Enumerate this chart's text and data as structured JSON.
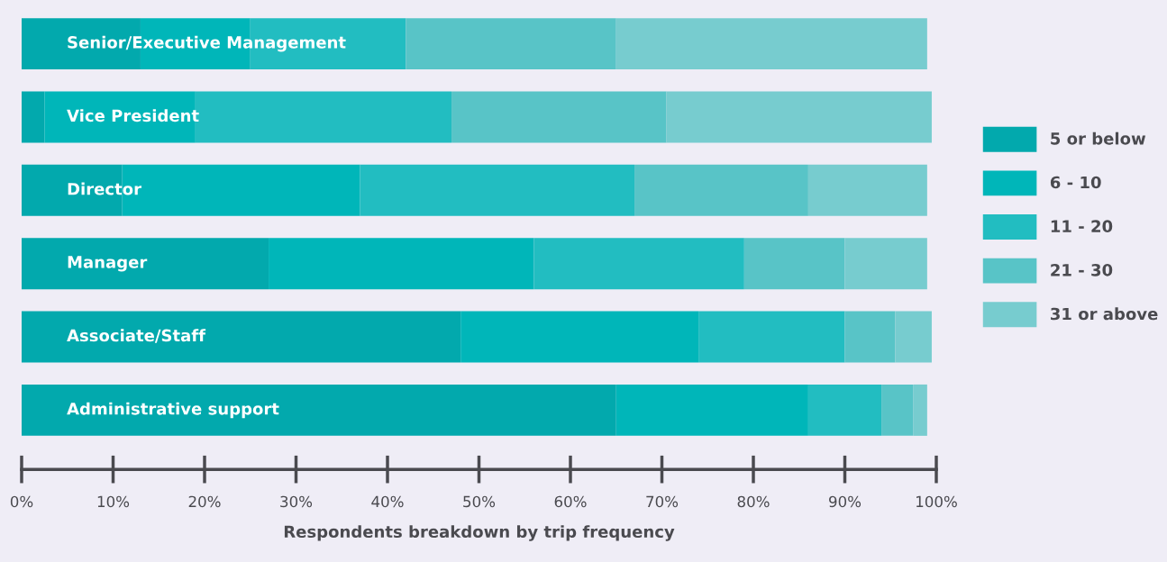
{
  "chart_data": {
    "type": "bar",
    "orientation": "horizontal",
    "stacked": true,
    "xlabel": "Respondents breakdown by trip frequency",
    "categories": [
      "Senior/Executive Management",
      "Vice President",
      "Director",
      "Manager",
      "Associate/Staff",
      "Administrative support"
    ],
    "series": [
      {
        "name": "5 or below",
        "color": "#02a9ad",
        "values": [
          13,
          2.5,
          11,
          27,
          48,
          65
        ]
      },
      {
        "name": "6 - 10",
        "color": "#00b6b9",
        "values": [
          12,
          16.5,
          26,
          29,
          26,
          21
        ]
      },
      {
        "name": "11 - 20",
        "color": "#22bdc1",
        "values": [
          17,
          28,
          30,
          23,
          16,
          8
        ]
      },
      {
        "name": "21 - 30",
        "color": "#58c4c7",
        "values": [
          23,
          23.5,
          19,
          11,
          5.5,
          3.5
        ]
      },
      {
        "name": "31 or above",
        "color": "#77cccf",
        "values": [
          34,
          29,
          13,
          9,
          4,
          1.5
        ]
      }
    ],
    "xlim": [
      0,
      100
    ],
    "xticks": [
      {
        "value": 0,
        "label": "0%"
      },
      {
        "value": 10,
        "label": "10%"
      },
      {
        "value": 20,
        "label": "20%"
      },
      {
        "value": 30,
        "label": "30%"
      },
      {
        "value": 40,
        "label": "40%"
      },
      {
        "value": 50,
        "label": "50%"
      },
      {
        "value": 60,
        "label": "60%"
      },
      {
        "value": 70,
        "label": "70%"
      },
      {
        "value": 80,
        "label": "80%"
      },
      {
        "value": 90,
        "label": "90%"
      },
      {
        "value": 100,
        "label": "100%"
      }
    ],
    "tick_labels": "x",
    "legend": "right",
    "grid": false
  }
}
